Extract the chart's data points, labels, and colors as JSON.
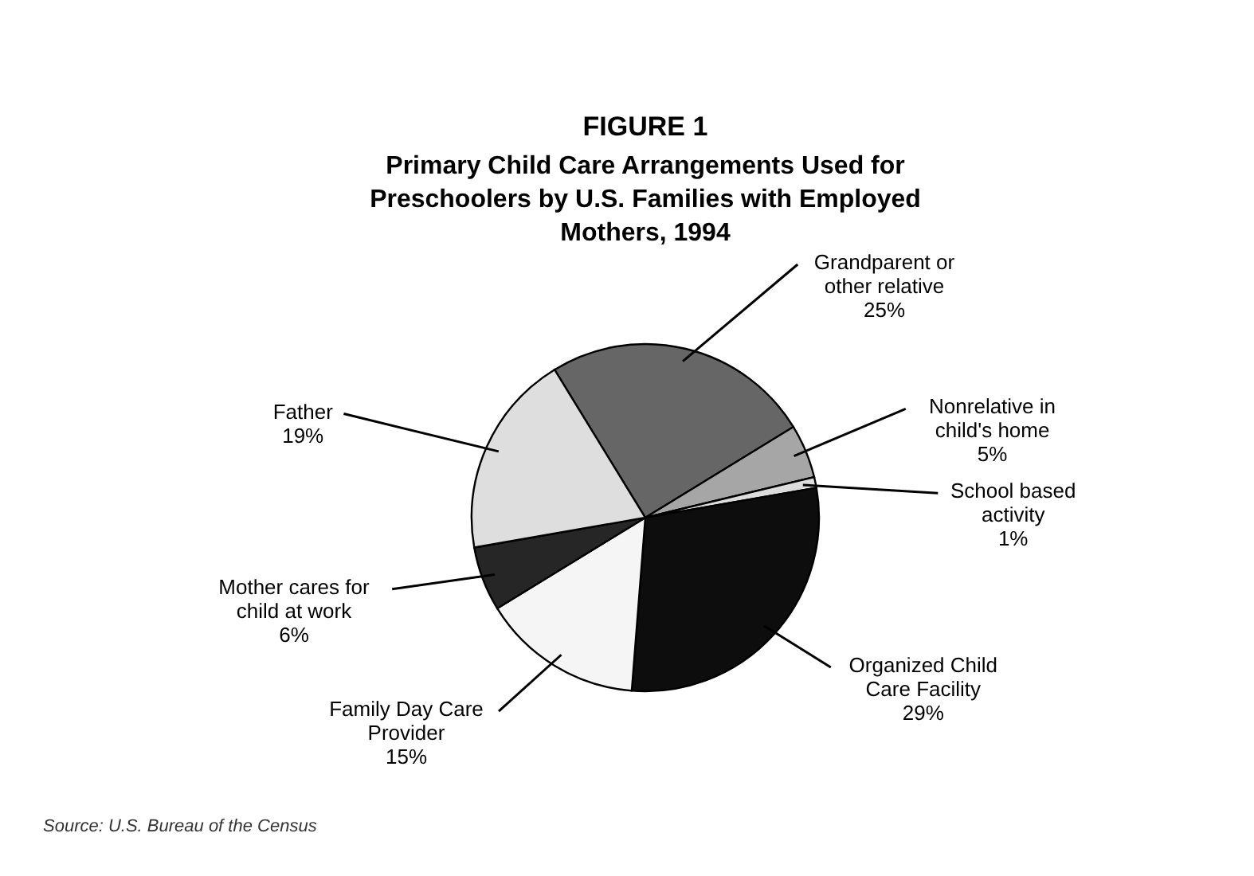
{
  "chart_data": {
    "type": "pie",
    "title": "FIGURE 1",
    "subtitle": "Primary Child Care Arrangements Used for Preschoolers by U.S. Families with Employed Mothers, 1994",
    "categories": [
      "Grandparent or other relative",
      "Nonrelative in child's home",
      "School based activity",
      "Organized Child Care Facility",
      "Family Day Care Provider",
      "Mother cares for child at work",
      "Father"
    ],
    "values": [
      25,
      5,
      1,
      29,
      15,
      6,
      19
    ],
    "value_labels": [
      "25%",
      "5%",
      "1%",
      "29%",
      "15%",
      "6%",
      "19%"
    ],
    "colors": [
      "#666666",
      "#a6a6a6",
      "#dcdcdc",
      "#0d0d0d",
      "#f5f5f5",
      "#262626",
      "#dedede"
    ],
    "annotations": [
      "Source: U.S. Bureau of the Census"
    ]
  }
}
